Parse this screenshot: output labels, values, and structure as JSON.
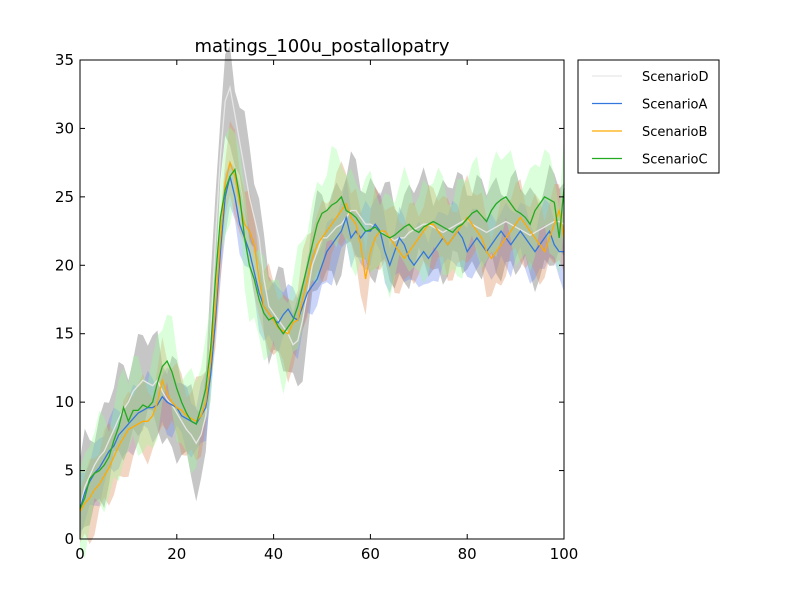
{
  "chart_data": {
    "type": "line",
    "title": "matings_100u_postallopatry",
    "xlabel": "",
    "ylabel": "",
    "xlim": [
      0,
      100
    ],
    "ylim": [
      0,
      35
    ],
    "x_ticks": [
      0,
      20,
      40,
      60,
      80,
      100
    ],
    "y_ticks": [
      0,
      5,
      10,
      15,
      20,
      25,
      30,
      35
    ],
    "x_tick_labels": [
      "0",
      "20",
      "40",
      "60",
      "80",
      "100"
    ],
    "y_tick_labels": [
      "0",
      "5",
      "10",
      "15",
      "20",
      "25",
      "30",
      "35"
    ],
    "grid": false,
    "legend_placement": "outside-top-right",
    "x_start": 0,
    "x_step": 1,
    "series": [
      {
        "name": "ScenarioD",
        "color": "#e6e6e6",
        "band_color": "#808080",
        "values": [
          2.2,
          3.8,
          4.6,
          5.4,
          6.0,
          6.4,
          7.2,
          8.0,
          8.8,
          9.5,
          10.0,
          10.8,
          11.2,
          11.6,
          11.4,
          11.2,
          11.6,
          10.8,
          10.2,
          9.8,
          9.2,
          8.6,
          8.0,
          7.6,
          7.0,
          7.6,
          9.0,
          15.0,
          22.0,
          28.0,
          32.0,
          33.0,
          31.0,
          29.0,
          27.0,
          25.0,
          23.5,
          22.0,
          19.0,
          17.0,
          16.5,
          16.0,
          15.5,
          15.0,
          14.2,
          14.5,
          16.0,
          18.0,
          20.0,
          21.0,
          22.0,
          22.0,
          22.4,
          22.8,
          23.0,
          23.5,
          24.0,
          24.0,
          23.5,
          23.0,
          23.0,
          22.8,
          22.5,
          22.2,
          22.0,
          21.8,
          22.0,
          22.0,
          22.4,
          22.6,
          22.8,
          23.0,
          23.0,
          22.8,
          22.6,
          22.4,
          22.6,
          22.8,
          23.0,
          23.2,
          23.4,
          23.0,
          22.8,
          22.6,
          22.4,
          22.6,
          22.8,
          23.0,
          23.2,
          23.0,
          22.8,
          22.6,
          22.4,
          22.2,
          22.4,
          22.6,
          22.8,
          23.0,
          23.2,
          23.2,
          23.0
        ],
        "band": 3.0
      },
      {
        "name": "ScenarioA",
        "color": "#3377dd",
        "band_color": "#6688ee",
        "values": [
          2.2,
          3.4,
          4.2,
          4.8,
          5.2,
          5.8,
          6.4,
          6.8,
          7.6,
          8.0,
          8.4,
          8.8,
          9.2,
          9.4,
          9.6,
          9.6,
          9.8,
          10.4,
          10.0,
          9.8,
          9.6,
          9.0,
          8.8,
          8.6,
          8.4,
          9.0,
          9.6,
          12.0,
          16.0,
          21.0,
          25.0,
          26.5,
          25.0,
          23.0,
          22.0,
          21.0,
          19.5,
          18.0,
          17.0,
          16.5,
          16.0,
          15.8,
          16.4,
          16.8,
          16.2,
          16.0,
          17.0,
          18.0,
          18.5,
          19.0,
          20.0,
          21.0,
          21.5,
          22.0,
          22.5,
          23.5,
          22.0,
          22.5,
          22.0,
          22.5,
          22.5,
          23.0,
          22.5,
          21.0,
          20.0,
          21.0,
          22.0,
          21.5,
          20.5,
          20.0,
          20.5,
          21.0,
          20.5,
          21.0,
          21.5,
          22.0,
          21.5,
          22.0,
          22.5,
          22.0,
          21.0,
          21.5,
          22.0,
          21.5,
          21.0,
          21.5,
          22.0,
          22.5,
          22.0,
          21.5,
          22.0,
          22.5,
          22.0,
          21.5,
          21.0,
          21.5,
          22.0,
          22.5,
          21.5,
          21.0,
          21.0
        ],
        "band": 2.0
      },
      {
        "name": "ScenarioB",
        "color": "#ffaa00",
        "band_color": "#dd8855",
        "values": [
          2.0,
          2.6,
          3.0,
          3.6,
          4.0,
          4.6,
          5.2,
          6.0,
          6.8,
          7.4,
          8.0,
          8.2,
          8.4,
          8.6,
          8.6,
          9.0,
          10.0,
          11.6,
          10.6,
          10.0,
          9.6,
          9.4,
          9.0,
          8.8,
          8.6,
          9.0,
          10.0,
          13.0,
          17.0,
          22.0,
          26.0,
          27.5,
          26.5,
          24.5,
          23.0,
          22.5,
          21.5,
          19.0,
          17.0,
          16.5,
          16.0,
          15.4,
          15.2,
          15.0,
          15.8,
          16.0,
          17.5,
          19.0,
          20.5,
          21.5,
          22.0,
          22.5,
          23.0,
          23.5,
          24.0,
          24.5,
          23.5,
          23.0,
          21.5,
          19.0,
          21.0,
          22.0,
          22.5,
          22.5,
          22.0,
          21.5,
          21.0,
          20.5,
          21.0,
          21.5,
          22.0,
          22.5,
          23.0,
          23.0,
          22.5,
          22.0,
          21.5,
          22.0,
          22.5,
          23.0,
          23.5,
          23.0,
          22.5,
          22.0,
          21.0,
          20.5,
          21.0,
          21.5,
          22.0,
          22.5,
          23.0,
          23.5,
          23.0,
          22.5,
          22.0,
          21.5,
          21.0,
          22.0,
          23.0,
          24.0,
          22.0
        ],
        "band": 2.5
      },
      {
        "name": "ScenarioC",
        "color": "#22aa22",
        "band_color": "#99ff99",
        "values": [
          2.2,
          3.0,
          4.4,
          4.8,
          5.0,
          5.4,
          6.0,
          7.2,
          8.2,
          9.6,
          8.6,
          9.4,
          9.4,
          9.8,
          9.6,
          10.0,
          11.4,
          12.6,
          13.0,
          12.2,
          11.0,
          10.0,
          9.2,
          8.6,
          8.4,
          9.6,
          11.0,
          14.0,
          19.0,
          23.5,
          25.5,
          26.5,
          27.0,
          25.0,
          22.0,
          20.0,
          19.0,
          17.5,
          16.5,
          16.0,
          16.2,
          15.5,
          15.0,
          15.5,
          16.0,
          17.0,
          18.5,
          20.0,
          21.5,
          23.0,
          23.8,
          24.0,
          24.4,
          24.6,
          25.0,
          24.0,
          23.8,
          23.5,
          23.0,
          22.5,
          22.6,
          22.8,
          22.4,
          22.2,
          22.0,
          22.2,
          22.5,
          22.8,
          23.0,
          22.6,
          22.4,
          22.8,
          23.0,
          23.2,
          23.0,
          22.8,
          22.6,
          22.4,
          22.8,
          23.0,
          23.4,
          23.8,
          24.0,
          23.6,
          23.2,
          24.0,
          24.5,
          24.8,
          25.0,
          24.5,
          24.0,
          23.8,
          23.5,
          23.0,
          24.0,
          24.5,
          25.0,
          24.8,
          24.6,
          22.0,
          25.6
        ],
        "band": 3.0
      }
    ]
  }
}
